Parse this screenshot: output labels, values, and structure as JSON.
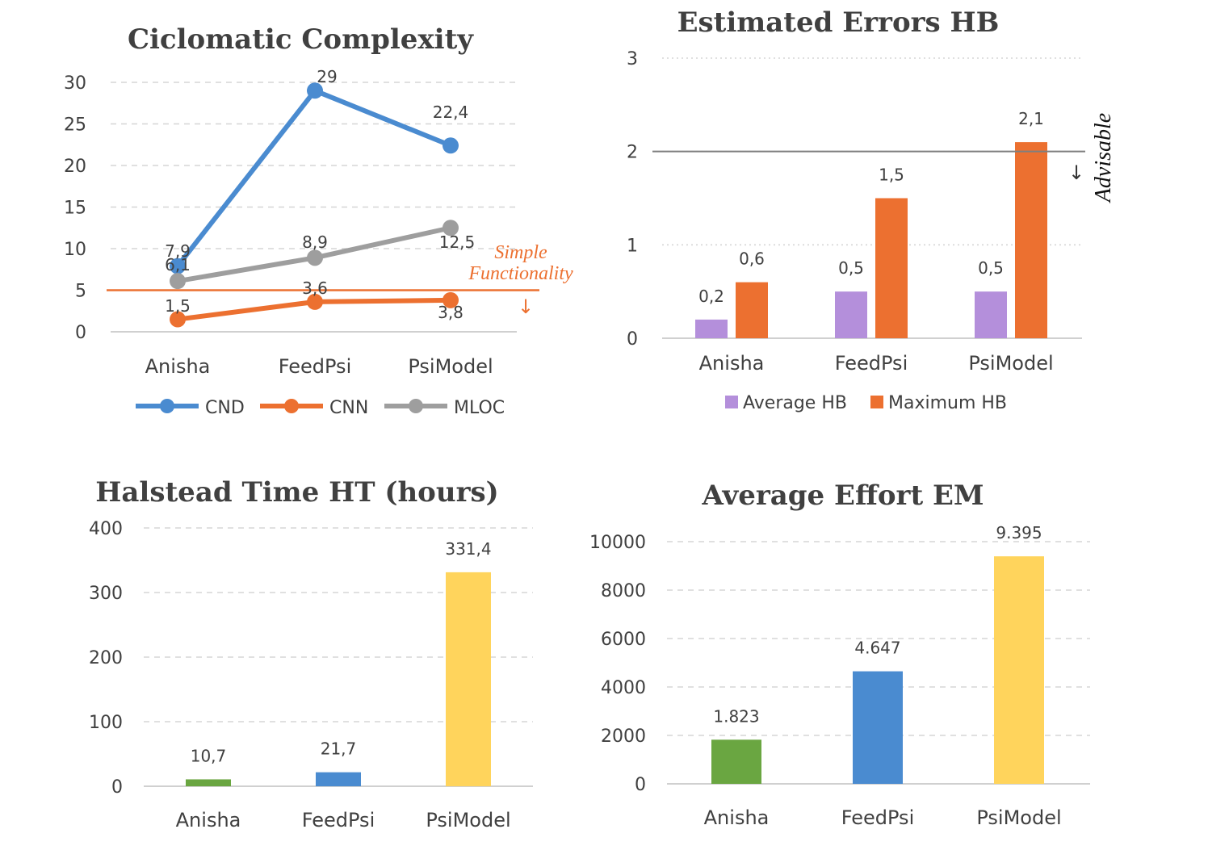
{
  "chart_data": [
    {
      "type": "line",
      "title": "Ciclomatic Complexity",
      "categories": [
        "Anisha",
        "FeedPsi",
        "PsiModel"
      ],
      "series": [
        {
          "name": "CND",
          "values": [
            7.9,
            29,
            22.4
          ],
          "labels": [
            "7,9",
            "29",
            "22,4"
          ],
          "color": "#4a8bd0"
        },
        {
          "name": "CNN",
          "values": [
            1.5,
            3.6,
            3.8
          ],
          "labels": [
            "1,5",
            "3,6",
            "3,8"
          ],
          "color": "#ec7030"
        },
        {
          "name": "MLOC",
          "values": [
            6.1,
            8.9,
            12.5
          ],
          "labels": [
            "6,1",
            "8,9",
            "12,5"
          ],
          "color": "#9e9e9e"
        }
      ],
      "ylim": [
        0,
        30
      ],
      "yticks": [
        0,
        5,
        10,
        15,
        20,
        25,
        30
      ],
      "grid": true,
      "legend": "bottom",
      "reference_line": {
        "value": 5,
        "label_line1": "Simple",
        "label_line2": "Functionality",
        "arrow": "↓",
        "color": "#ec7030"
      }
    },
    {
      "type": "bar",
      "title": "Estimated Errors HB",
      "categories": [
        "Anisha",
        "FeedPsi",
        "PsiModel"
      ],
      "series": [
        {
          "name": "Average HB",
          "values": [
            0.2,
            0.5,
            0.5
          ],
          "labels": [
            "0,2",
            "0,5",
            "0,5"
          ],
          "color": "#b48fdb"
        },
        {
          "name": "Maximum HB",
          "values": [
            0.6,
            1.5,
            2.1
          ],
          "labels": [
            "0,6",
            "1,5",
            "2,1"
          ],
          "color": "#ec7030"
        }
      ],
      "ylim": [
        0,
        3
      ],
      "yticks": [
        0,
        1,
        2,
        3
      ],
      "grid": true,
      "legend": "bottom",
      "reference_line": {
        "value": 2,
        "label": "Advisable",
        "arrow": "↓",
        "color": "#7f7f7f"
      }
    },
    {
      "type": "bar",
      "title": "Halstead Time HT (hours)",
      "categories": [
        "Anisha",
        "FeedPsi",
        "PsiModel"
      ],
      "values": [
        10.7,
        21.7,
        331.4
      ],
      "labels": [
        "10,7",
        "21,7",
        "331,4"
      ],
      "colors": [
        "#6aa641",
        "#4a8bd0",
        "#ffd45c"
      ],
      "ylim": [
        0,
        400
      ],
      "yticks": [
        0,
        100,
        200,
        300,
        400
      ],
      "grid": true
    },
    {
      "type": "bar",
      "title": "Average Effort EM",
      "categories": [
        "Anisha",
        "FeedPsi",
        "PsiModel"
      ],
      "values": [
        1823,
        4647,
        9395
      ],
      "labels": [
        "1.823",
        "4.647",
        "9.395"
      ],
      "colors": [
        "#6aa641",
        "#4a8bd0",
        "#ffd45c"
      ],
      "ylim": [
        0,
        10000
      ],
      "yticks": [
        0,
        2000,
        4000,
        6000,
        8000,
        10000
      ],
      "grid": true
    }
  ]
}
